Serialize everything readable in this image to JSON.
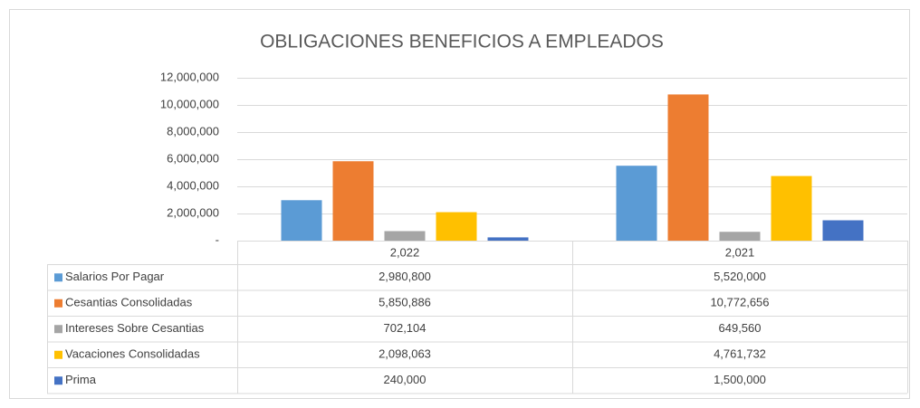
{
  "chart_data": {
    "type": "bar",
    "title": "OBLIGACIONES BENEFICIOS A EMPLEADOS",
    "categories": [
      "2,022",
      "2,021"
    ],
    "series": [
      {
        "name": "Salarios Por Pagar",
        "color": "#5b9bd5",
        "values": [
          2980800,
          5520000
        ],
        "value_labels": [
          "2,980,800",
          "5,520,000"
        ]
      },
      {
        "name": "Cesantias Consolidadas",
        "color": "#ed7d31",
        "values": [
          5850886,
          10772656
        ],
        "value_labels": [
          "5,850,886",
          "10,772,656"
        ]
      },
      {
        "name": "Intereses Sobre Cesantias",
        "color": "#a5a5a5",
        "values": [
          702104,
          649560
        ],
        "value_labels": [
          "702,104",
          "649,560"
        ]
      },
      {
        "name": "Vacaciones Consolidadas",
        "color": "#ffc000",
        "values": [
          2098063,
          4761732
        ],
        "value_labels": [
          "2,098,063",
          "4,761,732"
        ]
      },
      {
        "name": "Prima",
        "color": "#4472c4",
        "values": [
          240000,
          1500000
        ],
        "value_labels": [
          "240,000",
          "1,500,000"
        ]
      }
    ],
    "ylim": [
      0,
      12000000
    ],
    "yticks": [
      {
        "value": 0,
        "label": "-"
      },
      {
        "value": 2000000,
        "label": "2,000,000"
      },
      {
        "value": 4000000,
        "label": "4,000,000"
      },
      {
        "value": 6000000,
        "label": "6,000,000"
      },
      {
        "value": 8000000,
        "label": "8,000,000"
      },
      {
        "value": 10000000,
        "label": "10,000,000"
      },
      {
        "value": 12000000,
        "label": "12,000,000"
      }
    ],
    "grid": true
  }
}
